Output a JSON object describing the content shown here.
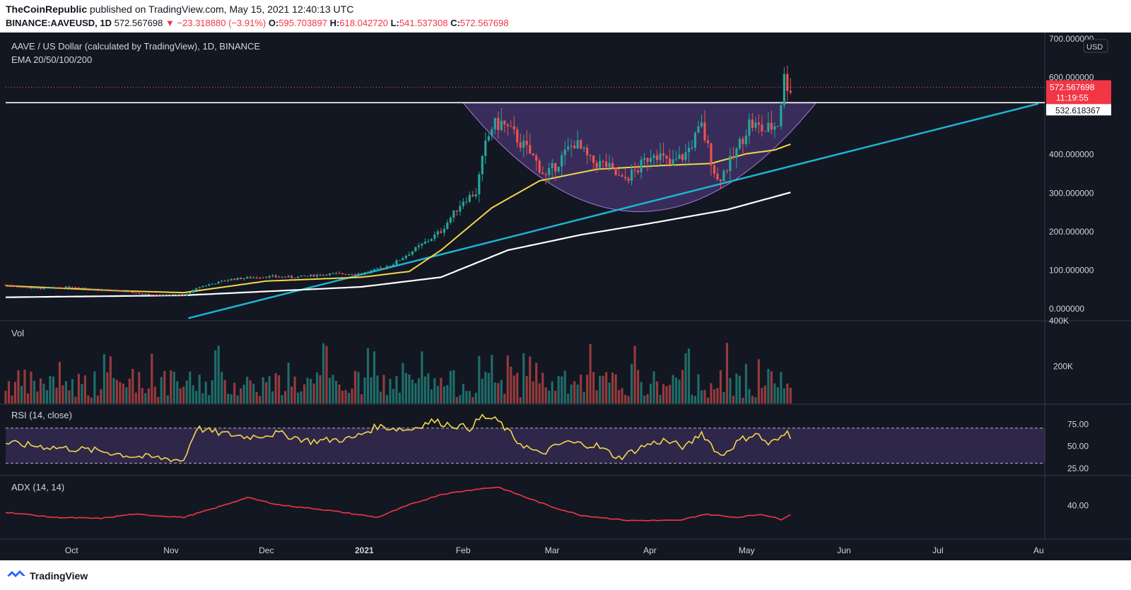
{
  "header": {
    "publisher": "TheCoinRepublic",
    "published_text": "published on TradingView.com, May 15, 2021 12:40:13 UTC",
    "symbol": "BINANCE:AAVEUSD, 1D",
    "last": "572.567698",
    "change": "▼ −23.318880 (−3.91%)",
    "o_label": "O:",
    "o_value": "595.703897",
    "h_label": "H:",
    "h_value": "618.042720",
    "l_label": "L:",
    "l_value": "541.537308",
    "c_label": "C:",
    "c_value": "572.567698"
  },
  "footer": {
    "brand": "TradingView"
  },
  "colors": {
    "background": "#131722",
    "up": "#26a69a",
    "down": "#ef5350",
    "ema_yellow": "#f5d64b",
    "ema_white": "#ffffff",
    "trendline": "#1eb4d2",
    "cup_fill": "#7e57c2",
    "rsi_line": "#f5d64b",
    "adx_line": "#f23645",
    "resistance": "#ffffff"
  },
  "chart_data": {
    "type": "candlestick",
    "title": "AAVE / US Dollar (calculated by TradingView), 1D, BINANCE",
    "indicator_label": "EMA 20/50/100/200",
    "currency": "USD",
    "price_axis": {
      "ticks": [
        "700.000000",
        "600.000000",
        "400.000000",
        "300.000000",
        "200.000000",
        "100.000000",
        "0.000000"
      ],
      "ylim": [
        -30,
        700
      ]
    },
    "last_price": "572.567698",
    "countdown": "11:19:55",
    "resistance_level": "532.618367",
    "time_axis": {
      "ticks": [
        "Oct",
        "Nov",
        "Dec",
        "2021",
        "Feb",
        "Mar",
        "Apr",
        "May",
        "Jun",
        "Jul",
        "Au"
      ]
    },
    "price_anchors": [
      [
        "2020-09-10",
        60
      ],
      [
        "2020-09-20",
        50
      ],
      [
        "2020-10-01",
        55
      ],
      [
        "2020-10-15",
        45
      ],
      [
        "2020-10-25",
        35
      ],
      [
        "2020-11-05",
        32
      ],
      [
        "2020-11-10",
        55
      ],
      [
        "2020-11-20",
        75
      ],
      [
        "2020-12-01",
        82
      ],
      [
        "2020-12-10",
        80
      ],
      [
        "2020-12-20",
        88
      ],
      [
        "2020-12-31",
        90
      ],
      [
        "2021-01-05",
        100
      ],
      [
        "2021-01-10",
        115
      ],
      [
        "2021-01-20",
        170
      ],
      [
        "2021-01-25",
        200
      ],
      [
        "2021-02-01",
        280
      ],
      [
        "2021-02-05",
        300
      ],
      [
        "2021-02-08",
        420
      ],
      [
        "2021-02-10",
        470
      ],
      [
        "2021-02-13",
        480
      ],
      [
        "2021-02-18",
        440
      ],
      [
        "2021-02-23",
        390
      ],
      [
        "2021-02-27",
        340
      ],
      [
        "2021-03-03",
        380
      ],
      [
        "2021-03-08",
        430
      ],
      [
        "2021-03-13",
        380
      ],
      [
        "2021-03-18",
        370
      ],
      [
        "2021-03-23",
        330
      ],
      [
        "2021-03-28",
        360
      ],
      [
        "2021-04-02",
        410
      ],
      [
        "2021-04-07",
        370
      ],
      [
        "2021-04-12",
        400
      ],
      [
        "2021-04-17",
        470
      ],
      [
        "2021-04-22",
        330
      ],
      [
        "2021-04-27",
        390
      ],
      [
        "2021-05-02",
        480
      ],
      [
        "2021-05-07",
        460
      ],
      [
        "2021-05-11",
        480
      ],
      [
        "2021-05-13",
        595
      ],
      [
        "2021-05-15",
        572
      ]
    ],
    "volume": {
      "label": "Vol",
      "ticks": [
        "400K",
        "200K"
      ]
    },
    "rsi": {
      "label": "RSI (14, close)",
      "ticks": [
        "75.00",
        "50.00",
        "25.00"
      ],
      "bands": [
        70,
        30
      ],
      "anchors": [
        [
          "2020-09-10",
          53
        ],
        [
          "2020-09-25",
          48
        ],
        [
          "2020-10-10",
          44
        ],
        [
          "2020-10-20",
          38
        ],
        [
          "2020-11-01",
          35
        ],
        [
          "2020-11-05",
          33
        ],
        [
          "2020-11-09",
          70
        ],
        [
          "2020-11-15",
          65
        ],
        [
          "2020-11-25",
          60
        ],
        [
          "2020-12-05",
          64
        ],
        [
          "2020-12-15",
          55
        ],
        [
          "2020-12-28",
          58
        ],
        [
          "2021-01-05",
          72
        ],
        [
          "2021-01-15",
          68
        ],
        [
          "2021-01-22",
          78
        ],
        [
          "2021-01-28",
          74
        ],
        [
          "2021-02-03",
          70
        ],
        [
          "2021-02-07",
          83
        ],
        [
          "2021-02-12",
          78
        ],
        [
          "2021-02-18",
          55
        ],
        [
          "2021-02-25",
          40
        ],
        [
          "2021-03-05",
          54
        ],
        [
          "2021-03-15",
          50
        ],
        [
          "2021-03-22",
          36
        ],
        [
          "2021-03-30",
          50
        ],
        [
          "2021-04-05",
          56
        ],
        [
          "2021-04-12",
          48
        ],
        [
          "2021-04-17",
          65
        ],
        [
          "2021-04-23",
          38
        ],
        [
          "2021-04-29",
          56
        ],
        [
          "2021-05-04",
          64
        ],
        [
          "2021-05-08",
          52
        ],
        [
          "2021-05-12",
          58
        ],
        [
          "2021-05-14",
          66
        ],
        [
          "2021-05-15",
          61
        ]
      ]
    },
    "adx": {
      "label": "ADX (14, 14)",
      "ticks": [
        "40.00"
      ],
      "anchors": [
        [
          "2020-09-10",
          33
        ],
        [
          "2020-09-25",
          28
        ],
        [
          "2020-10-10",
          27
        ],
        [
          "2020-10-20",
          31
        ],
        [
          "2020-11-05",
          28
        ],
        [
          "2020-11-15",
          37
        ],
        [
          "2020-11-25",
          47
        ],
        [
          "2020-12-05",
          40
        ],
        [
          "2020-12-20",
          35
        ],
        [
          "2021-01-05",
          28
        ],
        [
          "2021-01-15",
          40
        ],
        [
          "2021-01-25",
          50
        ],
        [
          "2021-02-05",
          55
        ],
        [
          "2021-02-12",
          57
        ],
        [
          "2021-02-20",
          48
        ],
        [
          "2021-03-01",
          38
        ],
        [
          "2021-03-10",
          30
        ],
        [
          "2021-03-25",
          25
        ],
        [
          "2021-04-10",
          25
        ],
        [
          "2021-04-18",
          31
        ],
        [
          "2021-04-28",
          28
        ],
        [
          "2021-05-06",
          31
        ],
        [
          "2021-05-12",
          26
        ],
        [
          "2021-05-15",
          31
        ]
      ]
    },
    "ema_50_anchors": [
      [
        "2020-09-10",
        58
      ],
      [
        "2020-10-15",
        45
      ],
      [
        "2020-11-05",
        40
      ],
      [
        "2020-12-01",
        70
      ],
      [
        "2020-12-31",
        80
      ],
      [
        "2021-01-15",
        95
      ],
      [
        "2021-01-25",
        150
      ],
      [
        "2021-02-10",
        260
      ],
      [
        "2021-02-25",
        330
      ],
      [
        "2021-03-15",
        360
      ],
      [
        "2021-04-05",
        370
      ],
      [
        "2021-04-20",
        375
      ],
      [
        "2021-05-01",
        400
      ],
      [
        "2021-05-10",
        410
      ],
      [
        "2021-05-15",
        425
      ]
    ],
    "ema_200_anchors": [
      [
        "2020-09-10",
        28
      ],
      [
        "2020-11-05",
        33
      ],
      [
        "2020-12-31",
        55
      ],
      [
        "2021-01-25",
        80
      ],
      [
        "2021-02-15",
        150
      ],
      [
        "2021-03-10",
        190
      ],
      [
        "2021-04-01",
        220
      ],
      [
        "2021-04-25",
        255
      ],
      [
        "2021-05-15",
        300
      ]
    ],
    "trendline": {
      "from": [
        "2021-01-10",
        80
      ],
      "to": [
        "2021-08-01",
        530
      ]
    },
    "cup": {
      "left": [
        "2021-02-01",
        532
      ],
      "bottom": [
        "2021-03-26",
        250
      ],
      "right": [
        "2021-05-23",
        532
      ]
    }
  }
}
